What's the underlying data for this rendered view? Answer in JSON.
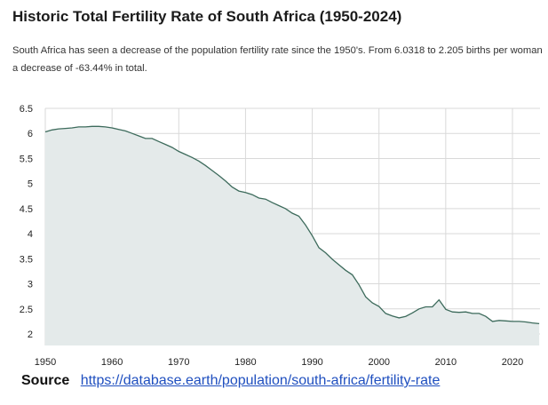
{
  "header": {
    "title": "Historic Total Fertility Rate of South Africa (1950-2024)",
    "description": "South Africa has seen a decrease of the population fertility rate since the 1950's. From 6.0318 to 2.205 births per woman a decrease of -63.44% in total."
  },
  "source": {
    "label": "Source",
    "url": "https://database.earth/population/south-africa/fertility-rate"
  },
  "colors": {
    "line": "#3d6b5c",
    "fill": "#e4eaea",
    "grid": "#d9d9d9"
  },
  "chart_data": {
    "type": "area",
    "title": "Historic Total Fertility Rate of South Africa (1950-2024)",
    "xlabel": "",
    "ylabel": "",
    "xlim": [
      1950,
      2024
    ],
    "ylim": [
      1.8,
      6.5
    ],
    "grid": true,
    "x_ticks": [
      1950,
      1960,
      1970,
      1980,
      1990,
      2000,
      2010,
      2020
    ],
    "y_ticks": [
      2,
      2.5,
      3,
      3.5,
      4,
      4.5,
      5,
      5.5,
      6,
      6.5
    ],
    "x_tick_labels": [
      "1950",
      "1960",
      "1970",
      "1980",
      "1990",
      "2000",
      "2010",
      "2020"
    ],
    "y_tick_labels": [
      "2",
      "2.5",
      "3",
      "3.5",
      "4",
      "4.5",
      "5",
      "5.5",
      "6",
      "6.5"
    ],
    "series": [
      {
        "x": [
          1950,
          1951,
          1952,
          1953,
          1954,
          1955,
          1956,
          1957,
          1958,
          1959,
          1960,
          1961,
          1962,
          1963,
          1964,
          1965,
          1966,
          1967,
          1968,
          1969,
          1970,
          1971,
          1972,
          1973,
          1974,
          1975,
          1976,
          1977,
          1978,
          1979,
          1980,
          1981,
          1982,
          1983,
          1984,
          1985,
          1986,
          1987,
          1988,
          1989,
          1990,
          1991,
          1992,
          1993,
          1994,
          1995,
          1996,
          1997,
          1998,
          1999,
          2000,
          2001,
          2002,
          2003,
          2004,
          2005,
          2006,
          2007,
          2008,
          2009,
          2010,
          2011,
          2012,
          2013,
          2014,
          2015,
          2016,
          2017,
          2018,
          2019,
          2020,
          2021,
          2022,
          2023,
          2024
        ],
        "values": [
          6.03,
          6.07,
          6.09,
          6.1,
          6.11,
          6.13,
          6.13,
          6.14,
          6.14,
          6.13,
          6.11,
          6.08,
          6.05,
          6.0,
          5.95,
          5.9,
          5.9,
          5.84,
          5.78,
          5.72,
          5.64,
          5.58,
          5.52,
          5.45,
          5.36,
          5.26,
          5.16,
          5.05,
          4.93,
          4.85,
          4.82,
          4.78,
          4.71,
          4.69,
          4.62,
          4.56,
          4.5,
          4.41,
          4.35,
          4.17,
          3.96,
          3.72,
          3.62,
          3.49,
          3.38,
          3.27,
          3.18,
          2.98,
          2.74,
          2.62,
          2.55,
          2.41,
          2.36,
          2.32,
          2.35,
          2.42,
          2.5,
          2.54,
          2.54,
          2.68,
          2.49,
          2.44,
          2.43,
          2.44,
          2.41,
          2.41,
          2.35,
          2.25,
          2.27,
          2.26,
          2.25,
          2.25,
          2.24,
          2.22,
          2.205
        ]
      }
    ]
  }
}
